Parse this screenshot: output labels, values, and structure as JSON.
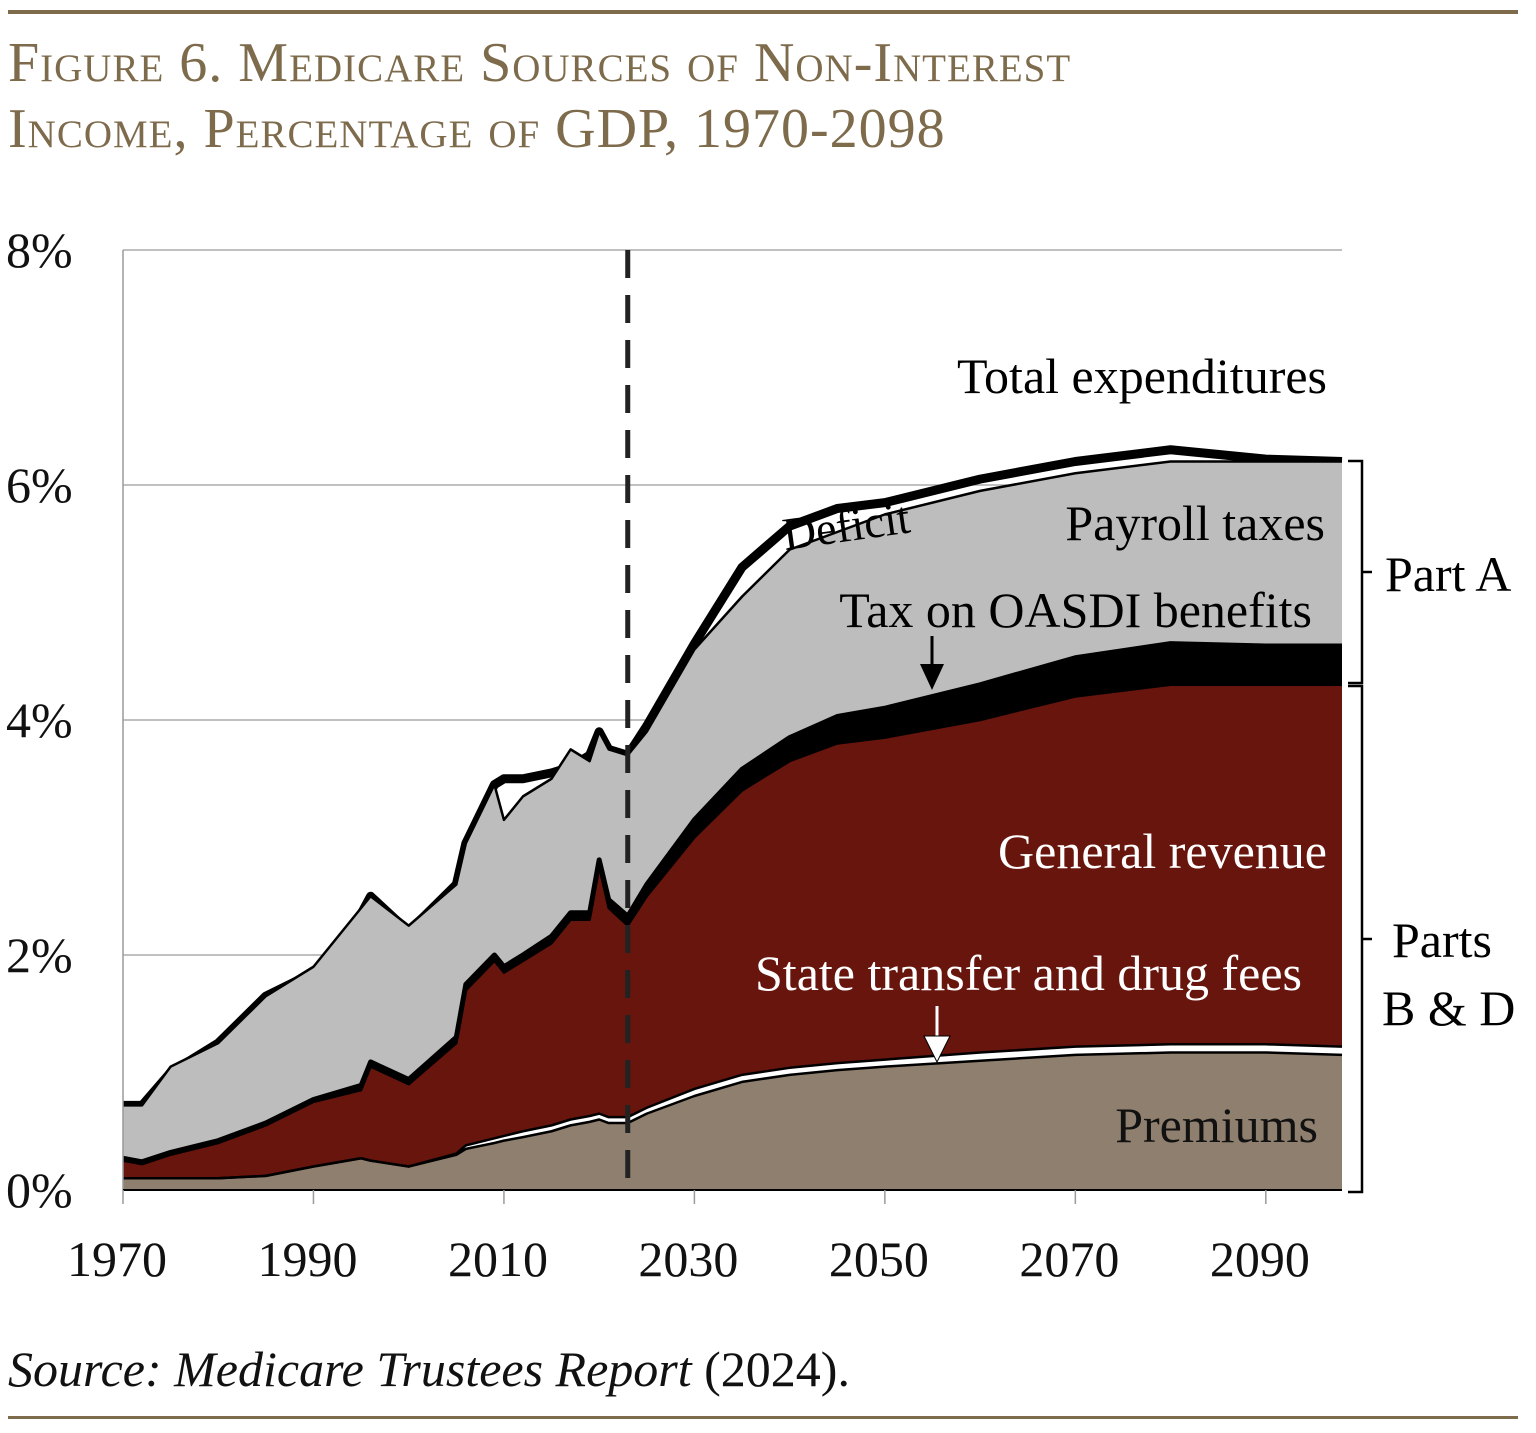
{
  "title_line1": "Figure 6. Medicare Sources of Non-Interest",
  "title_line2": "Income, Percentage of GDP, 1970-2098",
  "source_label": "Source: Medicare Trustees Report",
  "source_year": " (2024).",
  "colors": {
    "payroll": "#bdbdbd",
    "general_revenue": "#67150d",
    "premiums": "#8f7f6e",
    "oasdi": "#000000",
    "state": "#ffffff",
    "title": "#7d6b4c"
  },
  "chart_data": {
    "type": "area",
    "stacked": true,
    "xlim": [
      1970,
      2098
    ],
    "ylim": [
      0,
      8
    ],
    "grid": "horizontal",
    "projection_start": 2023,
    "x_ticks": [
      "1970",
      "1990",
      "2010",
      "2030",
      "2050",
      "2070",
      "2090"
    ],
    "y_ticks": [
      "0%",
      "2%",
      "4%",
      "6%",
      "8%"
    ],
    "x": [
      1970,
      1972,
      1975,
      1980,
      1985,
      1990,
      1995,
      1996,
      2000,
      2005,
      2006,
      2009,
      2010,
      2012,
      2015,
      2017,
      2019,
      2020,
      2021,
      2023,
      2025,
      2030,
      2035,
      2040,
      2045,
      2050,
      2060,
      2070,
      2080,
      2090,
      2098
    ],
    "series": [
      {
        "name": "Premiums",
        "key": "premiums",
        "values": [
          0.1,
          0.1,
          0.1,
          0.1,
          0.12,
          0.2,
          0.27,
          0.25,
          0.2,
          0.3,
          0.35,
          0.4,
          0.42,
          0.45,
          0.5,
          0.55,
          0.58,
          0.6,
          0.57,
          0.57,
          0.65,
          0.8,
          0.92,
          0.98,
          1.02,
          1.05,
          1.1,
          1.15,
          1.17,
          1.17,
          1.15
        ]
      },
      {
        "name": "State transfer and drug fees",
        "key": "state",
        "values": [
          0,
          0,
          0,
          0,
          0,
          0,
          0,
          0,
          0,
          0.01,
          0.03,
          0.04,
          0.04,
          0.05,
          0.05,
          0.05,
          0.05,
          0.05,
          0.05,
          0.05,
          0.05,
          0.06,
          0.06,
          0.06,
          0.06,
          0.06,
          0.07,
          0.07,
          0.07,
          0.07,
          0.07
        ]
      },
      {
        "name": "General revenue",
        "key": "general_revenue",
        "values": [
          0.15,
          0.12,
          0.2,
          0.3,
          0.43,
          0.55,
          0.58,
          0.8,
          0.7,
          0.94,
          1.32,
          1.51,
          1.39,
          1.45,
          1.55,
          1.7,
          1.67,
          2.1,
          1.78,
          1.63,
          1.8,
          2.14,
          2.42,
          2.61,
          2.72,
          2.74,
          2.83,
          2.98,
          3.06,
          3.06,
          3.08
        ]
      },
      {
        "name": "Tax on OASDI benefits",
        "key": "oasdi",
        "values": [
          0.02,
          0.02,
          0.02,
          0.02,
          0.02,
          0.02,
          0.04,
          0.04,
          0.04,
          0.05,
          0.05,
          0.05,
          0.05,
          0.05,
          0.06,
          0.06,
          0.06,
          0.06,
          0.07,
          0.08,
          0.1,
          0.15,
          0.18,
          0.2,
          0.23,
          0.25,
          0.3,
          0.33,
          0.35,
          0.33,
          0.33
        ]
      },
      {
        "name": "Payroll taxes",
        "key": "payroll",
        "values": [
          0.45,
          0.48,
          0.73,
          0.83,
          1.08,
          1.13,
          1.51,
          1.41,
          1.31,
          1.3,
          1.2,
          1.45,
          1.25,
          1.35,
          1.34,
          1.39,
          1.29,
          1.09,
          1.28,
          1.37,
          1.3,
          1.45,
          1.47,
          1.6,
          1.57,
          1.65,
          1.65,
          1.57,
          1.55,
          1.57,
          1.57
        ]
      }
    ],
    "total_expenditures": {
      "name": "Total expenditures",
      "values": [
        0.72,
        0.72,
        1.0,
        1.25,
        1.65,
        1.85,
        2.35,
        2.5,
        2.2,
        2.6,
        2.95,
        3.45,
        3.5,
        3.5,
        3.55,
        3.6,
        3.7,
        3.9,
        3.75,
        3.7,
        3.95,
        4.65,
        5.3,
        5.65,
        5.8,
        5.85,
        6.05,
        6.2,
        6.3,
        6.22,
        6.2
      ]
    },
    "labels": {
      "total": "Total expenditures",
      "deficit": "Deficit",
      "payroll": "Payroll taxes",
      "oasdi": "Tax on OASDI benefits",
      "general_revenue": "General revenue",
      "state": "State transfer and drug fees",
      "premiums": "Premiums",
      "part_a": "Part A",
      "parts_bd_1": "Parts",
      "parts_bd_2": "B & D"
    }
  }
}
